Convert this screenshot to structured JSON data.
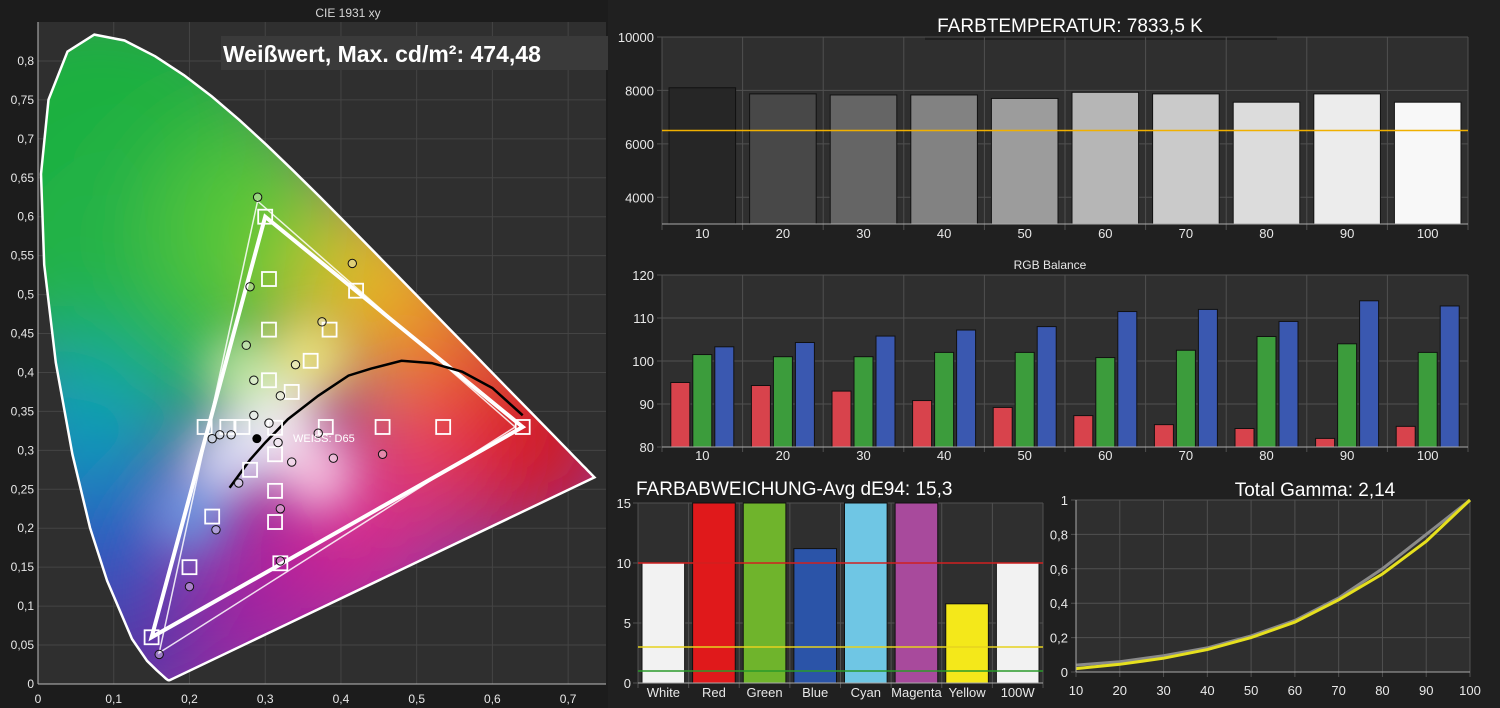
{
  "chart_data": [
    {
      "type": "scatter",
      "title": "CIE 1931 xy",
      "annotation": "Weißwert, Max. cd/m²: 474,48",
      "whitepoint_label": "WEISS: D65",
      "xlim": [
        0,
        0.75
      ],
      "ylim": [
        0,
        0.85
      ],
      "xticks": [
        "0",
        "0,1",
        "0,2",
        "0,3",
        "0,4",
        "0,5",
        "0,6",
        "0,7"
      ],
      "yticks": [
        "0",
        "0,05",
        "0,1",
        "0,15",
        "0,2",
        "0,25",
        "0,3",
        "0,35",
        "0,4",
        "0,45",
        "0,5",
        "0,55",
        "0,6",
        "0,65",
        "0,7",
        "0,75",
        "0,8"
      ],
      "target_gamut": [
        [
          0.64,
          0.33
        ],
        [
          0.3,
          0.6
        ],
        [
          0.15,
          0.06
        ]
      ],
      "measured_gamut": [
        [
          0.63,
          0.33
        ],
        [
          0.29,
          0.62
        ],
        [
          0.16,
          0.04
        ]
      ],
      "targets": [
        [
          0.64,
          0.33
        ],
        [
          0.3,
          0.6
        ],
        [
          0.15,
          0.06
        ],
        [
          0.42,
          0.505
        ],
        [
          0.305,
          0.52
        ],
        [
          0.385,
          0.455
        ],
        [
          0.305,
          0.455
        ],
        [
          0.36,
          0.415
        ],
        [
          0.305,
          0.39
        ],
        [
          0.335,
          0.375
        ],
        [
          0.22,
          0.33
        ],
        [
          0.25,
          0.33
        ],
        [
          0.27,
          0.33
        ],
        [
          0.313,
          0.329
        ],
        [
          0.38,
          0.33
        ],
        [
          0.455,
          0.33
        ],
        [
          0.535,
          0.33
        ],
        [
          0.313,
          0.295
        ],
        [
          0.313,
          0.248
        ],
        [
          0.313,
          0.208
        ],
        [
          0.23,
          0.215
        ],
        [
          0.2,
          0.15
        ],
        [
          0.32,
          0.155
        ],
        [
          0.28,
          0.275
        ]
      ],
      "measured": [
        [
          0.29,
          0.625
        ],
        [
          0.415,
          0.54
        ],
        [
          0.28,
          0.51
        ],
        [
          0.375,
          0.465
        ],
        [
          0.275,
          0.435
        ],
        [
          0.34,
          0.41
        ],
        [
          0.285,
          0.39
        ],
        [
          0.32,
          0.37
        ],
        [
          0.285,
          0.345
        ],
        [
          0.305,
          0.335
        ],
        [
          0.23,
          0.315
        ],
        [
          0.24,
          0.32
        ],
        [
          0.255,
          0.32
        ],
        [
          0.37,
          0.322
        ],
        [
          0.39,
          0.29
        ],
        [
          0.455,
          0.295
        ],
        [
          0.317,
          0.31
        ],
        [
          0.335,
          0.285
        ],
        [
          0.265,
          0.258
        ],
        [
          0.32,
          0.225
        ],
        [
          0.235,
          0.198
        ],
        [
          0.2,
          0.125
        ],
        [
          0.32,
          0.158
        ],
        [
          0.16,
          0.038
        ]
      ],
      "whitepoint": [
        0.289,
        0.315
      ],
      "planckian": [
        [
          0.253,
          0.252
        ],
        [
          0.28,
          0.288
        ],
        [
          0.3,
          0.31
        ],
        [
          0.33,
          0.34
        ],
        [
          0.37,
          0.37
        ],
        [
          0.41,
          0.396
        ],
        [
          0.44,
          0.405
        ],
        [
          0.48,
          0.415
        ],
        [
          0.52,
          0.412
        ],
        [
          0.56,
          0.401
        ],
        [
          0.6,
          0.38
        ],
        [
          0.64,
          0.345
        ]
      ]
    },
    {
      "type": "bar",
      "title": "FARBTEMPERATUR: 7833,5 K",
      "categories": [
        "10",
        "20",
        "30",
        "40",
        "50",
        "60",
        "70",
        "80",
        "90",
        "100"
      ],
      "values": [
        8100,
        7870,
        7830,
        7830,
        7700,
        7930,
        7870,
        7560,
        7870,
        7560
      ],
      "reference": 6500,
      "ylim": [
        3000,
        10000
      ],
      "yticks": [
        "4000",
        "6000",
        "8000",
        "10000"
      ],
      "bar_colors": [
        "#262626",
        "#484848",
        "#656565",
        "#828282",
        "#9c9c9c",
        "#b6b6b6",
        "#cacaca",
        "#dcdcdc",
        "#ececec",
        "#f8f8f8"
      ]
    },
    {
      "type": "bar",
      "title": "RGB Balance",
      "categories": [
        "10",
        "20",
        "30",
        "40",
        "50",
        "60",
        "70",
        "80",
        "90",
        "100"
      ],
      "series": [
        {
          "name": "R",
          "color": "#d8434c",
          "values": [
            95,
            94.3,
            93,
            90.8,
            89.2,
            87.3,
            85.2,
            84.3,
            82,
            84.8
          ]
        },
        {
          "name": "G",
          "color": "#3c9c3c",
          "values": [
            101.5,
            101,
            101,
            102,
            102,
            100.8,
            102.5,
            105.7,
            104,
            102
          ]
        },
        {
          "name": "B",
          "color": "#3a58b0",
          "values": [
            103.3,
            104.3,
            105.8,
            107.2,
            108,
            111.5,
            112,
            109.2,
            114,
            112.8
          ]
        }
      ],
      "ylim": [
        80,
        120
      ],
      "yticks": [
        "80",
        "90",
        "100",
        "110",
        "120"
      ]
    },
    {
      "type": "bar",
      "title": "FARBABWEICHUNG-Avg dE94: 15,3",
      "categories": [
        "White",
        "Red",
        "Green",
        "Blue",
        "Cyan",
        "Magenta",
        "Yellow",
        "100W"
      ],
      "values": [
        10,
        15,
        15,
        11.2,
        15,
        15,
        6.6,
        10
      ],
      "colors": [
        "#f2f2f2",
        "#e0191b",
        "#6fb42c",
        "#2b54a8",
        "#6fc6e4",
        "#a84a9c",
        "#f4e81a",
        "#f2f2f2"
      ],
      "ylim": [
        0,
        15
      ],
      "yticks": [
        "0",
        "5",
        "10",
        "15"
      ],
      "thresholds": [
        {
          "value": 10,
          "color": "#d02020"
        },
        {
          "value": 3,
          "color": "#e6d21e"
        },
        {
          "value": 1,
          "color": "#2a9a2a"
        }
      ]
    },
    {
      "type": "line",
      "title": "Total Gamma: 2,14",
      "x": [
        10,
        20,
        30,
        40,
        50,
        60,
        70,
        80,
        90,
        100
      ],
      "series": [
        {
          "name": "reference",
          "color": "#8a8a8a",
          "values": [
            0.04,
            0.06,
            0.095,
            0.14,
            0.21,
            0.3,
            0.43,
            0.6,
            0.8,
            1.0
          ]
        },
        {
          "name": "measured",
          "color": "#e6e01e",
          "values": [
            0.02,
            0.045,
            0.08,
            0.13,
            0.2,
            0.29,
            0.42,
            0.57,
            0.76,
            1.0
          ]
        }
      ],
      "xlim": [
        10,
        100
      ],
      "ylim": [
        0,
        1
      ],
      "xticks": [
        "10",
        "20",
        "30",
        "40",
        "50",
        "60",
        "70",
        "80",
        "90",
        "100"
      ],
      "yticks": [
        "0",
        "0,2",
        "0,4",
        "0,6",
        "0,8",
        "1"
      ]
    }
  ]
}
